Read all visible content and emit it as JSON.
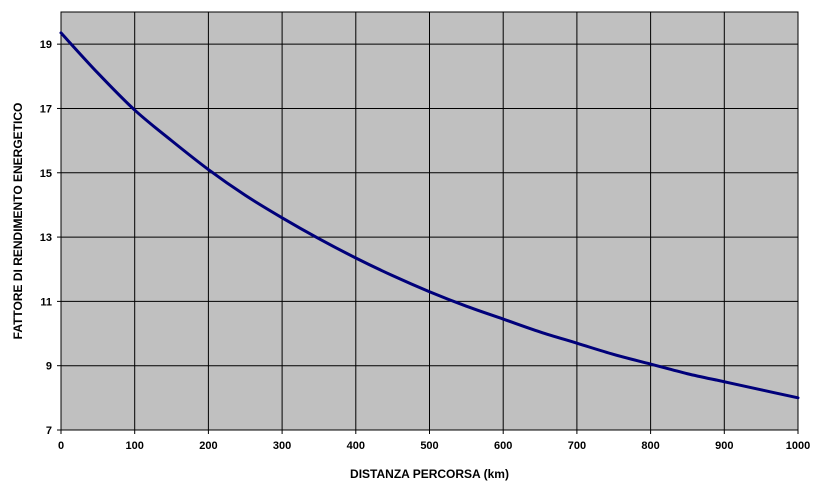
{
  "chart_data": {
    "type": "line",
    "title": "",
    "xlabel": "DISTANZA PERCORSA (km)",
    "ylabel": "FATTORE DI RENDIMENTO ENERGETICO",
    "xlim": [
      0,
      1000
    ],
    "ylim": [
      7,
      20
    ],
    "x_ticks": [
      0,
      100,
      200,
      300,
      400,
      500,
      600,
      700,
      800,
      900,
      1000
    ],
    "y_ticks": [
      7,
      9,
      11,
      13,
      15,
      17,
      19
    ],
    "x_tick_labels": [
      "0",
      "100",
      "200",
      "300",
      "400",
      "500",
      "600",
      "700",
      "800",
      "900",
      "1000"
    ],
    "y_tick_labels": [
      "7",
      "9",
      "11",
      "13",
      "15",
      "17",
      "19"
    ],
    "x_grid": [
      100,
      200,
      300,
      400,
      500,
      600,
      700,
      800,
      900
    ],
    "y_grid": [
      9,
      11,
      13,
      15,
      17,
      19
    ],
    "grid": true,
    "legend": "none",
    "colors": {
      "plot_background": "#c0c0c0",
      "grid": "#000000",
      "series": "#00007a",
      "page_background": "#ffffff"
    },
    "series": [
      {
        "x": [
          0,
          50,
          100,
          150,
          200,
          250,
          300,
          350,
          400,
          450,
          500,
          550,
          600,
          650,
          700,
          750,
          800,
          850,
          900,
          950,
          1000
        ],
        "values": [
          19.35,
          18.1,
          16.95,
          16.0,
          15.1,
          14.3,
          13.6,
          12.95,
          12.35,
          11.8,
          11.3,
          10.85,
          10.45,
          10.05,
          9.7,
          9.35,
          9.05,
          8.75,
          8.5,
          8.25,
          8.0
        ]
      }
    ]
  }
}
